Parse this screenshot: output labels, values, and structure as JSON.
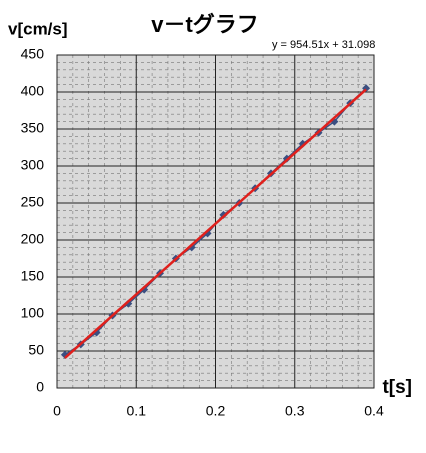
{
  "chart_data": {
    "type": "scatter-line",
    "title": "v－tグラフ",
    "ylabel": "v[cm/s]",
    "xlabel": "t[s]",
    "annotation": "y = 954.51x + 31.098",
    "x": [
      0.01,
      0.03,
      0.05,
      0.07,
      0.09,
      0.11,
      0.13,
      0.15,
      0.17,
      0.19,
      0.21,
      0.23,
      0.25,
      0.27,
      0.29,
      0.31,
      0.33,
      0.35,
      0.37,
      0.39
    ],
    "series": [
      {
        "color": "#3b4f81",
        "values": [
          45,
          59,
          75,
          98,
          114,
          133,
          155,
          175,
          190,
          209,
          234,
          250,
          270,
          290,
          310,
          330,
          345,
          360,
          385,
          405
        ]
      }
    ],
    "trendline": {
      "color": "#e0201c",
      "x": [
        0.01,
        0.39
      ],
      "values": [
        40.6,
        403.4
      ]
    },
    "xlim": [
      0,
      0.4
    ],
    "xticks": [
      0,
      0.1,
      0.2,
      0.3,
      0.4
    ],
    "ylim": [
      0,
      450
    ],
    "yticks": [
      0,
      50,
      100,
      150,
      200,
      250,
      300,
      350,
      400,
      450
    ],
    "grid": true
  }
}
